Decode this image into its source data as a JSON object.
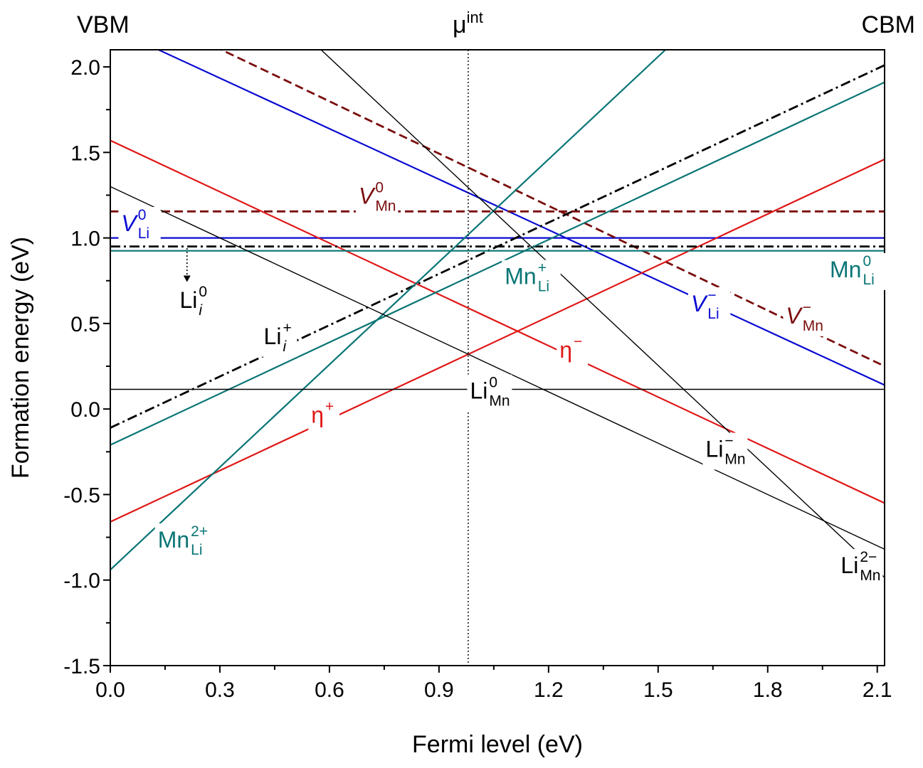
{
  "chart_data": {
    "type": "line",
    "xlabel": "Fermi level (eV)",
    "ylabel": "Formation energy (eV)",
    "xlim": [
      0.0,
      2.12
    ],
    "ylim": [
      -1.5,
      2.1
    ],
    "x_ticks": [
      "0.0",
      "0.3",
      "0.6",
      "0.9",
      "1.2",
      "1.5",
      "1.8",
      "2.1"
    ],
    "y_ticks": [
      "-1.5",
      "-1.0",
      "-0.5",
      "0.0",
      "0.5",
      "1.0",
      "1.5",
      "2.0"
    ],
    "top_labels": {
      "left": "VBM",
      "right": "CBM",
      "middle": "μ",
      "middle_sup": "int"
    },
    "mu_int": 0.98,
    "colors": {
      "black": "#000000",
      "blue": "#0a0ad2",
      "red": "#e01818",
      "teal": "#0a7575",
      "darkred": "#7a0d0d"
    },
    "series": [
      {
        "key": "vli0",
        "color": "blue",
        "dash": "solid",
        "width": 2.2,
        "x": [
          0.0,
          2.12
        ],
        "y": [
          1.0,
          1.0
        ]
      },
      {
        "key": "vli_m",
        "color": "blue",
        "dash": "solid",
        "width": 2.2,
        "x": [
          0.0,
          2.12
        ],
        "y": [
          2.23,
          0.14
        ]
      },
      {
        "key": "vmn0",
        "color": "darkred",
        "dash": "dash",
        "width": 2.8,
        "x": [
          0.0,
          2.12
        ],
        "y": [
          1.155,
          1.155
        ]
      },
      {
        "key": "vmn_m",
        "color": "darkred",
        "dash": "dash",
        "width": 2.8,
        "x": [
          0.0,
          2.12
        ],
        "y": [
          2.41,
          0.25
        ]
      },
      {
        "key": "eta_m",
        "color": "red",
        "dash": "solid",
        "width": 2.2,
        "x": [
          0.0,
          2.12
        ],
        "y": [
          1.57,
          -0.55
        ]
      },
      {
        "key": "eta_p",
        "color": "red",
        "dash": "solid",
        "width": 2.2,
        "x": [
          0.0,
          2.12
        ],
        "y": [
          -0.66,
          1.46
        ]
      },
      {
        "key": "lii0",
        "color": "black",
        "dash": "dashdot",
        "width": 2.8,
        "x": [
          0.0,
          2.12
        ],
        "y": [
          0.95,
          0.95
        ]
      },
      {
        "key": "lii_p",
        "color": "black",
        "dash": "dashdot",
        "width": 2.8,
        "x": [
          0.0,
          2.12
        ],
        "y": [
          -0.11,
          2.01
        ]
      },
      {
        "key": "mnli0",
        "color": "teal",
        "dash": "solid",
        "width": 2.2,
        "x": [
          0.0,
          2.12
        ],
        "y": [
          0.925,
          0.925
        ]
      },
      {
        "key": "mnli_p",
        "color": "teal",
        "dash": "solid",
        "width": 2.2,
        "x": [
          0.0,
          2.12
        ],
        "y": [
          -0.21,
          1.91
        ]
      },
      {
        "key": "mnli_2p",
        "color": "teal",
        "dash": "solid",
        "width": 2.2,
        "x": [
          0.0,
          1.52
        ],
        "y": [
          -0.94,
          2.1
        ]
      },
      {
        "key": "limn0",
        "color": "black",
        "dash": "solid",
        "width": 1.4,
        "x": [
          0.0,
          2.12
        ],
        "y": [
          0.115,
          0.115
        ]
      },
      {
        "key": "limn_m",
        "color": "black",
        "dash": "solid",
        "width": 1.4,
        "x": [
          0.0,
          2.12
        ],
        "y": [
          1.3,
          -0.82
        ]
      },
      {
        "key": "limn_2m",
        "color": "black",
        "dash": "solid",
        "width": 1.4,
        "x": [
          0.577,
          2.12
        ],
        "y": [
          2.1,
          -0.985
        ]
      }
    ],
    "annotations": [
      {
        "key": "a_vli0",
        "main": "V",
        "italic": true,
        "sup": "0",
        "sub": "Li",
        "color": "blue",
        "x": 0.03,
        "y": 1.04
      },
      {
        "key": "a_vli_m",
        "main": "V",
        "italic": true,
        "sup": "−",
        "sub": "Li",
        "color": "blue",
        "x": 1.59,
        "y": 0.57
      },
      {
        "key": "a_vmn0",
        "main": "V",
        "italic": true,
        "sup": "0",
        "sub": "Mn",
        "color": "darkred",
        "x": 0.68,
        "y": 1.2
      },
      {
        "key": "a_vmn_m",
        "main": "V",
        "italic": true,
        "sup": "−",
        "sub": "Mn",
        "color": "darkred",
        "x": 1.85,
        "y": 0.5
      },
      {
        "key": "a_eta_m",
        "main": "η",
        "italic": false,
        "sup": "−",
        "sub": "",
        "color": "red",
        "x": 1.23,
        "y": 0.3
      },
      {
        "key": "a_eta_p",
        "main": "η",
        "italic": false,
        "sup": "+",
        "sub": "",
        "color": "red",
        "x": 0.55,
        "y": -0.08
      },
      {
        "key": "a_lii0",
        "main": "Li",
        "italic": false,
        "sup": "0",
        "sub": "i",
        "subItalic": true,
        "color": "black",
        "x": 0.19,
        "y": 0.59
      },
      {
        "key": "a_lii_p",
        "main": "Li",
        "italic": false,
        "sup": "+",
        "sub": "i",
        "subItalic": true,
        "color": "black",
        "x": 0.42,
        "y": 0.38
      },
      {
        "key": "a_mnli0",
        "main": "Mn",
        "italic": false,
        "sup": "0",
        "sub": "Li",
        "color": "teal",
        "x": 1.97,
        "y": 0.77
      },
      {
        "key": "a_mnli_p",
        "main": "Mn",
        "italic": false,
        "sup": "+",
        "sub": "Li",
        "color": "teal",
        "x": 1.08,
        "y": 0.73
      },
      {
        "key": "a_mnli_2p",
        "main": "Mn",
        "italic": false,
        "sup": "2+",
        "sub": "Li",
        "color": "teal",
        "x": 0.13,
        "y": -0.81
      },
      {
        "key": "a_limn0",
        "main": "Li",
        "italic": false,
        "sup": "0",
        "sub": "Mn",
        "color": "black",
        "x": 0.985,
        "y": 0.06
      },
      {
        "key": "a_limn_m",
        "main": "Li",
        "italic": false,
        "sup": "−",
        "sub": "Mn",
        "color": "black",
        "x": 1.63,
        "y": -0.28
      },
      {
        "key": "a_limn_2m",
        "main": "Li",
        "italic": false,
        "sup": "2−",
        "sub": "Mn",
        "color": "black",
        "x": 2.0,
        "y": -0.96
      }
    ]
  }
}
